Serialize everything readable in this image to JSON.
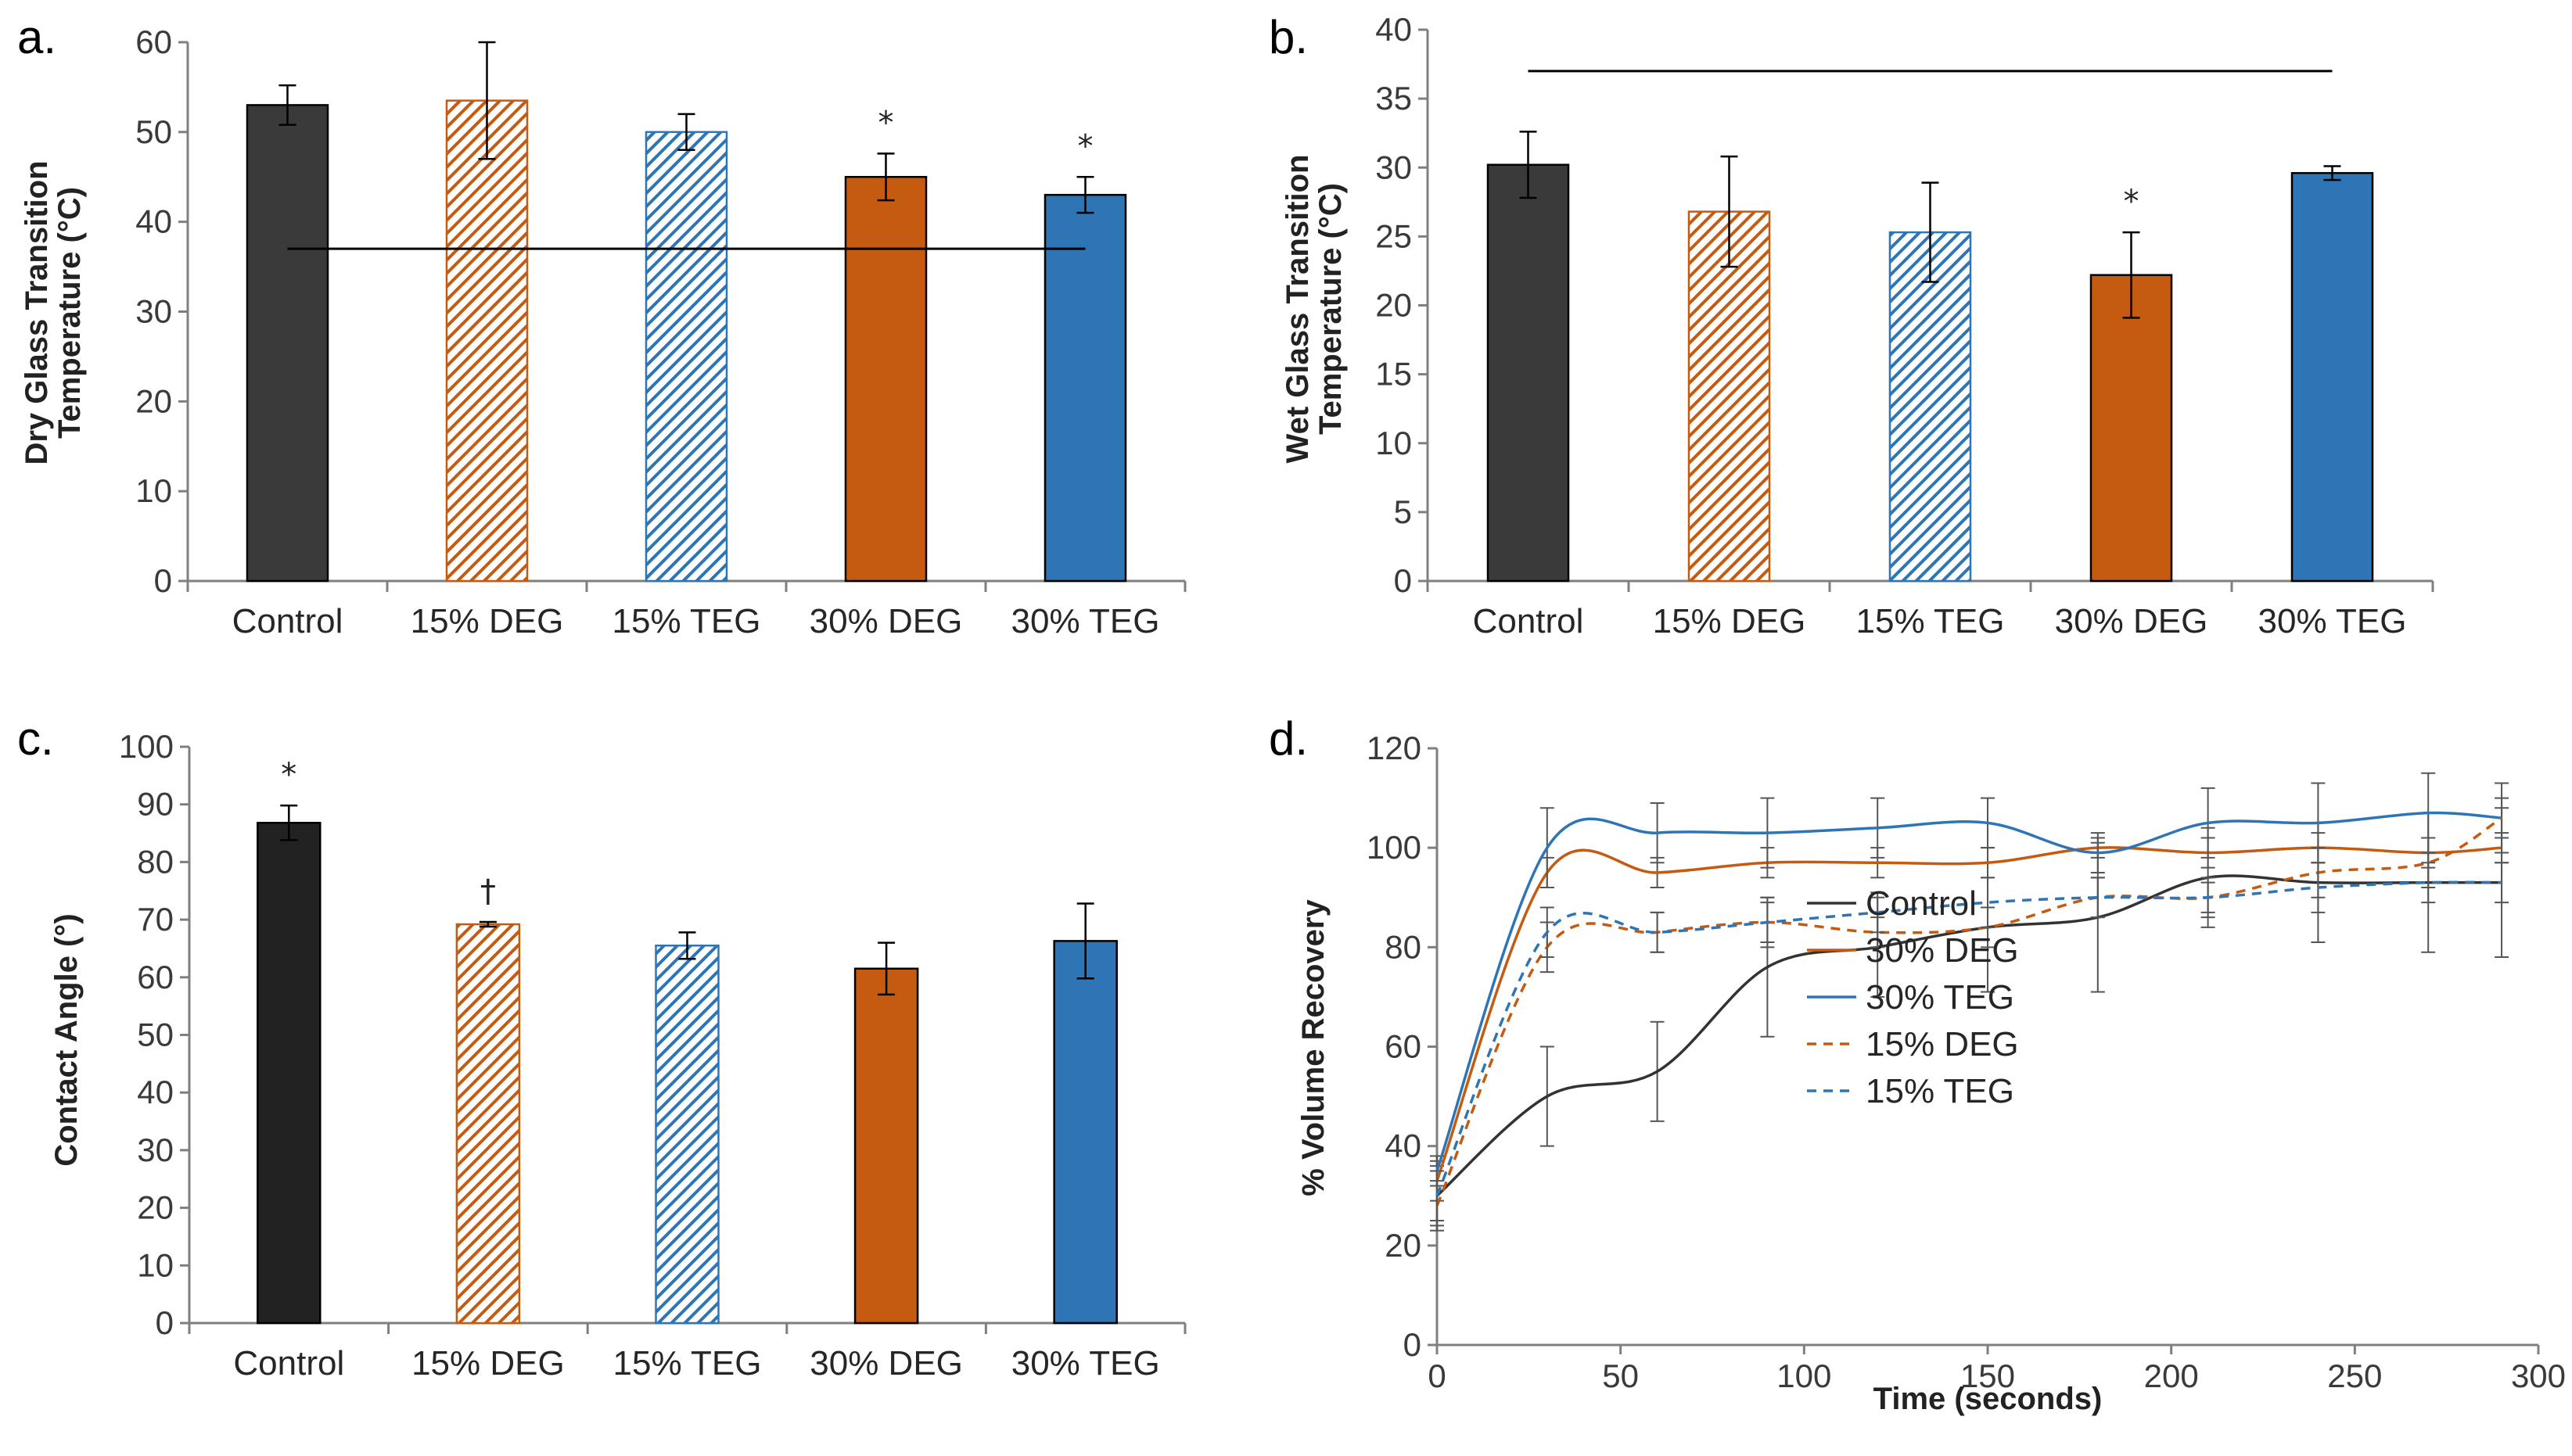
{
  "colors": {
    "control": "#3a3a3a",
    "control_c": "#222222",
    "deg": "#c55a11",
    "teg": "#2e75b6",
    "deg_hatch": "#c55a11",
    "teg_hatch": "#2e75b6",
    "line": "#000000"
  },
  "chart_data": [
    {
      "panel": "a.",
      "type": "bar",
      "ylabel_lines": [
        "Dry Glass Transition",
        "Temperature (°C)"
      ],
      "categories": [
        "Control",
        "15% DEG",
        "15% TEG",
        "30% DEG",
        "30% TEG"
      ],
      "values": [
        53,
        53.5,
        50,
        45,
        43
      ],
      "errors": [
        2.2,
        6.5,
        2,
        2.6,
        2
      ],
      "annotations": [
        "",
        "",
        "",
        "*",
        "*"
      ],
      "styles": [
        "control",
        "deg_hatch",
        "teg_hatch",
        "deg",
        "teg"
      ],
      "ylim": [
        0,
        60
      ],
      "yticks": [
        0,
        10,
        20,
        30,
        40,
        50,
        60
      ],
      "ref_line": {
        "y": 37,
        "from_category": 0,
        "to_category": 4
      }
    },
    {
      "panel": "b.",
      "type": "bar",
      "ylabel_lines": [
        "Wet Glass  Transition",
        "Temperature (°C)"
      ],
      "categories": [
        "Control",
        "15% DEG",
        "15% TEG",
        "30% DEG",
        "30% TEG"
      ],
      "values": [
        30.2,
        26.8,
        25.3,
        22.2,
        29.6
      ],
      "errors": [
        2.4,
        4,
        3.6,
        3.1,
        0.5
      ],
      "annotations": [
        "",
        "",
        "",
        "*",
        ""
      ],
      "styles": [
        "control",
        "deg_hatch",
        "teg_hatch",
        "deg",
        "teg"
      ],
      "ylim": [
        0,
        40
      ],
      "yticks": [
        0,
        5,
        10,
        15,
        20,
        25,
        30,
        35,
        40
      ],
      "ref_line": {
        "y": 37,
        "from_category": 0,
        "to_category": 4
      }
    },
    {
      "panel": "c.",
      "type": "bar",
      "ylabel_lines": [
        "Contact Angle (°)"
      ],
      "categories": [
        "Control",
        "15% DEG",
        "15% TEG",
        "30% DEG",
        "30% TEG"
      ],
      "values": [
        86.8,
        69.2,
        65.5,
        61.5,
        66.3
      ],
      "errors": [
        3,
        0.4,
        2.3,
        4.5,
        6.5
      ],
      "annotations": [
        "*",
        "†",
        "",
        "",
        ""
      ],
      "styles": [
        "control_c",
        "deg_hatch",
        "teg_hatch",
        "deg",
        "teg"
      ],
      "ylim": [
        0,
        100
      ],
      "yticks": [
        0,
        10,
        20,
        30,
        40,
        50,
        60,
        70,
        80,
        90,
        100
      ]
    },
    {
      "panel": "d.",
      "type": "line",
      "xlabel": "Time (seconds)",
      "ylabel": "% Volume Recovery",
      "xlim": [
        0,
        300
      ],
      "ylim": [
        0,
        120
      ],
      "xticks": [
        0,
        50,
        100,
        150,
        200,
        250,
        300
      ],
      "yticks": [
        0,
        20,
        40,
        60,
        80,
        100,
        120
      ],
      "x": [
        0,
        30,
        60,
        90,
        120,
        150,
        180,
        210,
        240,
        270,
        290
      ],
      "series": [
        {
          "name": "Control",
          "style": "control_line",
          "dashed": false,
          "values": [
            30,
            50,
            55,
            76,
            80,
            84,
            86,
            94,
            93,
            93,
            93
          ],
          "errors": [
            6,
            10,
            10,
            14,
            10,
            13,
            15,
            10,
            12,
            14,
            15
          ]
        },
        {
          "name": "30% DEG",
          "style": "deg",
          "dashed": false,
          "values": [
            33,
            95,
            95,
            97,
            97,
            97,
            100,
            99,
            100,
            99,
            100
          ],
          "errors": [
            4,
            3,
            3,
            3,
            3,
            3,
            2,
            3,
            3,
            3,
            3
          ]
        },
        {
          "name": "30% TEG",
          "style": "teg",
          "dashed": false,
          "values": [
            35,
            100,
            103,
            103,
            104,
            105,
            99,
            105,
            105,
            107,
            106
          ],
          "errors": [
            3,
            8,
            6,
            7,
            6,
            5,
            4,
            7,
            8,
            8,
            7
          ]
        },
        {
          "name": "15% DEG",
          "style": "deg",
          "dashed": true,
          "values": [
            28,
            80,
            83,
            85,
            83,
            84,
            90,
            90,
            95,
            97,
            106
          ],
          "errors": [
            5,
            5,
            4,
            4,
            3,
            4,
            4,
            3,
            5,
            5,
            4
          ]
        },
        {
          "name": "15% TEG",
          "style": "teg",
          "dashed": true,
          "values": [
            30,
            83,
            83,
            85,
            87,
            89,
            90,
            90,
            92,
            93,
            93
          ],
          "errors": [
            5,
            5,
            4,
            5,
            4,
            5,
            4,
            4,
            5,
            4,
            4
          ]
        }
      ]
    }
  ]
}
